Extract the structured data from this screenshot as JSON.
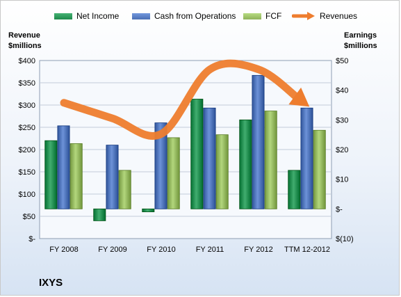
{
  "chart_data": {
    "type": "bar",
    "company": "IXYS",
    "categories": [
      "FY 2008",
      "FY 2009",
      "FY 2010",
      "FY 2011",
      "FY 2012",
      "TTM 12-2012"
    ],
    "left_axis": {
      "title_line1": "Revenue",
      "title_line2": "$millions",
      "ylim": [
        0,
        400
      ],
      "ticks": [
        0,
        50,
        100,
        150,
        200,
        250,
        300,
        350,
        400
      ],
      "tick_labels": [
        "$-",
        "$50",
        "$100",
        "$150",
        "$200",
        "$250",
        "$300",
        "$350",
        "$400"
      ]
    },
    "right_axis": {
      "title_line1": "Earnings",
      "title_line2": "$millions",
      "ylim": [
        -10,
        50
      ],
      "ticks": [
        -10,
        0,
        10,
        20,
        30,
        40,
        50
      ],
      "tick_labels": [
        "$(10)",
        "$-",
        "$10",
        "$20",
        "$30",
        "$40",
        "$50"
      ]
    },
    "series": [
      {
        "name": "Net Income",
        "axis": "right",
        "type": "bar",
        "color": "#1e8a4c",
        "values": [
          23,
          -4,
          -1,
          37,
          30,
          13
        ]
      },
      {
        "name": "Cash from Operations",
        "axis": "right",
        "type": "bar",
        "color": "#4a6fb5",
        "values": [
          28,
          21.5,
          29,
          34,
          45,
          34
        ]
      },
      {
        "name": "FCF",
        "axis": "right",
        "type": "bar",
        "color": "#8fb35a",
        "values": [
          22,
          13,
          24,
          25,
          33,
          26.5
        ]
      },
      {
        "name": "Revenues",
        "axis": "left",
        "type": "line",
        "color": "#ee7d2e",
        "values": [
          305,
          270,
          235,
          380,
          380,
          300
        ]
      }
    ],
    "grid": true,
    "legend_position": "top"
  }
}
